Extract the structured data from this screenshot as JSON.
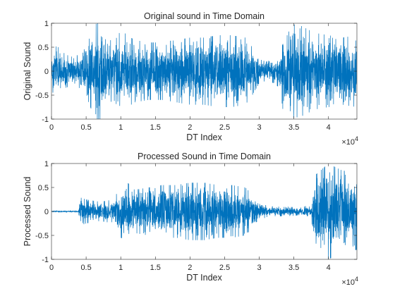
{
  "chart_data": [
    {
      "type": "line",
      "title": "Original sound in Time Domain",
      "xlabel": "DT Index",
      "ylabel": "Original Sound",
      "xlim": [
        0,
        44100
      ],
      "ylim": [
        -1,
        1
      ],
      "x_ticks": [
        0,
        5000,
        10000,
        15000,
        20000,
        25000,
        30000,
        35000,
        40000
      ],
      "x_tick_labels": [
        "0",
        "0.5",
        "1",
        "1.5",
        "2",
        "2.5",
        "3",
        "3.5",
        "4"
      ],
      "x_exponent_base": "×10",
      "x_exponent": "4",
      "y_ticks": [
        -1,
        -0.5,
        0,
        0.5,
        1
      ],
      "y_tick_labels": [
        "-1",
        "-0.5",
        "0",
        "0.5",
        "1"
      ],
      "series_color": "#0072bd",
      "envelope_x": [
        0,
        1000,
        2000,
        3000,
        4000,
        5000,
        6000,
        6500,
        7000,
        7500,
        8000,
        9000,
        10000,
        11000,
        12000,
        14000,
        16000,
        18000,
        20000,
        22000,
        24000,
        26000,
        28000,
        29000,
        30000,
        31000,
        32000,
        33000,
        33500,
        34000,
        36000,
        38000,
        40000,
        42000,
        44100
      ],
      "envelope": [
        0.55,
        0.5,
        0.35,
        0.3,
        0.35,
        0.5,
        0.9,
        1.0,
        1.0,
        0.95,
        0.7,
        0.6,
        0.85,
        0.75,
        0.65,
        0.6,
        0.6,
        0.65,
        0.7,
        0.7,
        0.75,
        0.75,
        0.7,
        0.5,
        0.25,
        0.2,
        0.25,
        0.35,
        0.9,
        1.0,
        0.95,
        0.8,
        0.75,
        0.7,
        0.75
      ]
    },
    {
      "type": "line",
      "title": "Processed Sound in Time Domain",
      "xlabel": "DT Index",
      "ylabel": "Processed Sound",
      "xlim": [
        0,
        44100
      ],
      "ylim": [
        -1,
        1
      ],
      "x_ticks": [
        0,
        5000,
        10000,
        15000,
        20000,
        25000,
        30000,
        35000,
        40000
      ],
      "x_tick_labels": [
        "0",
        "0.5",
        "1",
        "1.5",
        "2",
        "2.5",
        "3",
        "3.5",
        "4"
      ],
      "x_exponent_base": "×10",
      "x_exponent": "4",
      "y_ticks": [
        -1,
        -0.5,
        0,
        0.5,
        1
      ],
      "y_tick_labels": [
        "-1",
        "-0.5",
        "0",
        "0.5",
        "1"
      ],
      "series_color": "#0072bd",
      "envelope_x": [
        0,
        3900,
        4000,
        5000,
        7000,
        9000,
        10000,
        11000,
        12000,
        14000,
        16000,
        18000,
        20000,
        22000,
        24000,
        26000,
        28000,
        29000,
        30000,
        31000,
        32000,
        34000,
        36000,
        37500,
        38000,
        40000,
        42000,
        44100
      ],
      "envelope": [
        0.01,
        0.02,
        0.3,
        0.25,
        0.2,
        0.25,
        0.55,
        0.6,
        0.45,
        0.5,
        0.55,
        0.55,
        0.6,
        0.6,
        0.55,
        0.55,
        0.5,
        0.35,
        0.2,
        0.12,
        0.1,
        0.1,
        0.08,
        0.15,
        0.75,
        1.0,
        0.85,
        0.8
      ]
    }
  ]
}
